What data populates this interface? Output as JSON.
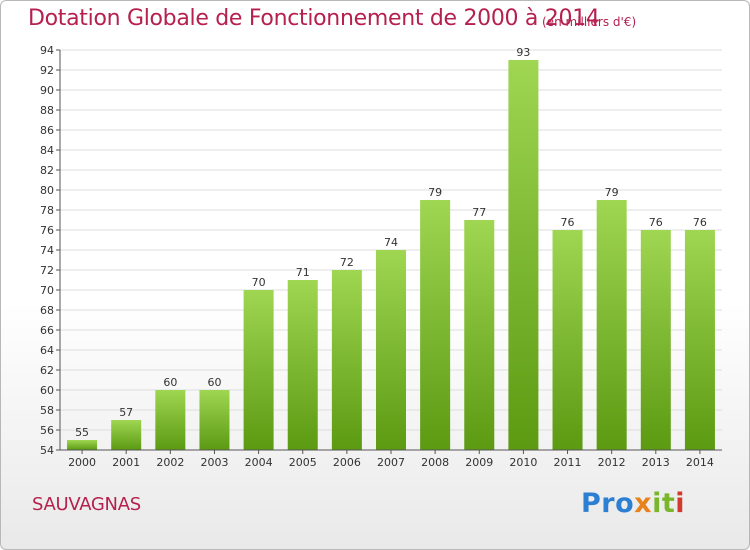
{
  "header": {
    "title": "Dotation Globale de Fonctionnement de 2000 à 2014",
    "subtitle": "(en milliers d'€)"
  },
  "footer": {
    "commune": "SAUVAGNAS",
    "logo_parts": [
      "Pro",
      "x",
      "it",
      "i"
    ]
  },
  "colors": {
    "accent": "#b5204f",
    "bar_top": "#9fd652",
    "bar_bottom": "#5c9a12",
    "grid": "#dddddd"
  },
  "chart_data": {
    "type": "bar",
    "title": "Dotation Globale de Fonctionnement de 2000 à 2014",
    "subtitle": "(en milliers d'€)",
    "xlabel": "",
    "ylabel": "",
    "categories": [
      "2000",
      "2001",
      "2002",
      "2003",
      "2004",
      "2005",
      "2006",
      "2007",
      "2008",
      "2009",
      "2010",
      "2011",
      "2012",
      "2013",
      "2014"
    ],
    "values": [
      55,
      57,
      60,
      60,
      70,
      71,
      72,
      74,
      79,
      77,
      93,
      76,
      79,
      76,
      76
    ],
    "ylim": [
      54,
      94
    ],
    "ytick_step": 2,
    "grid": true,
    "legend": "none"
  }
}
